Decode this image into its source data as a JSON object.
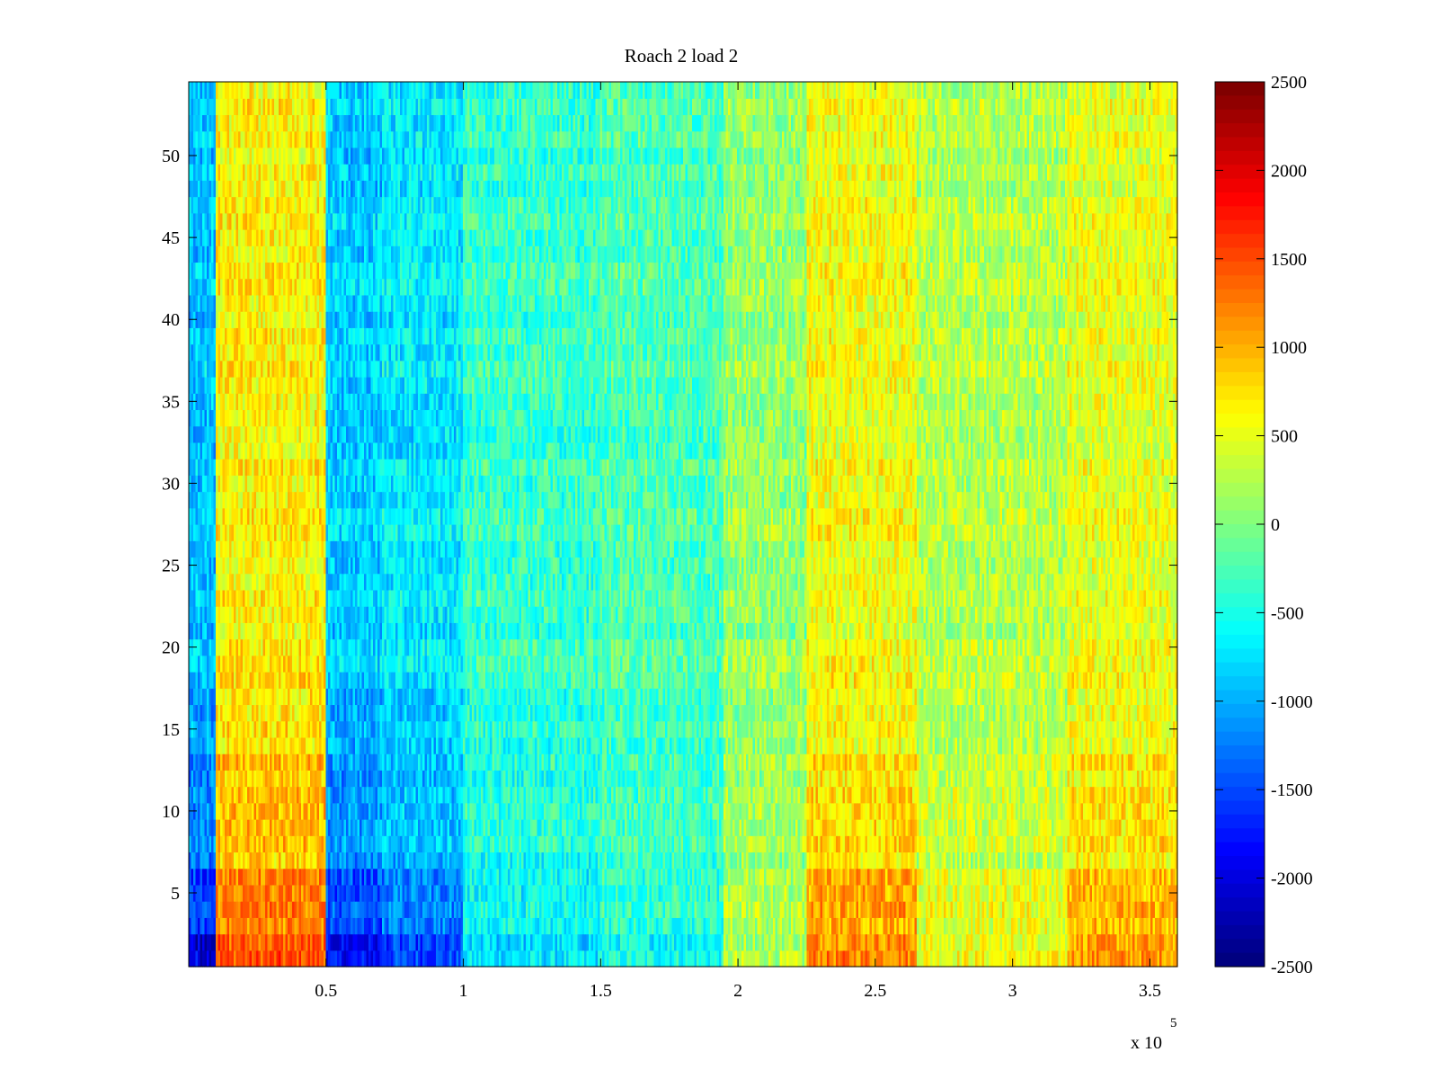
{
  "chart_data": {
    "type": "heatmap",
    "title": "Roach 2 load 2",
    "xlabel": "",
    "ylabel": "",
    "x_exponent_label": "x 10",
    "x_exponent": "5",
    "xlim": [
      0,
      360000
    ],
    "ylim": [
      0.5,
      54.5
    ],
    "x_ticks": [
      50000,
      100000,
      150000,
      200000,
      250000,
      300000,
      350000
    ],
    "x_tick_labels": [
      "0.5",
      "1",
      "1.5",
      "2",
      "2.5",
      "3",
      "3.5"
    ],
    "y_ticks": [
      5,
      10,
      15,
      20,
      25,
      30,
      35,
      40,
      45,
      50
    ],
    "y_tick_labels": [
      "5",
      "10",
      "15",
      "20",
      "25",
      "30",
      "35",
      "40",
      "45",
      "50"
    ],
    "rows": 54,
    "colormap": "jet",
    "clim": [
      -2500,
      2500
    ],
    "colorbar": {
      "ticks": [
        2500,
        2000,
        1500,
        1000,
        500,
        0,
        -500,
        -1000,
        -1500,
        -2000,
        -2500
      ],
      "tick_labels": [
        "2500",
        "2000",
        "1500",
        "1000",
        "500",
        "0",
        "-500",
        "-1000",
        "-1500",
        "-2000",
        "-2500"
      ],
      "levels": 64,
      "placement": "right"
    },
    "segments": [
      {
        "x_range": [
          0,
          10000
        ],
        "mean": -900
      },
      {
        "x_range": [
          10000,
          50000
        ],
        "mean": 650
      },
      {
        "x_range": [
          50000,
          70000
        ],
        "mean": -850
      },
      {
        "x_range": [
          70000,
          100000
        ],
        "mean": -700
      },
      {
        "x_range": [
          100000,
          150000
        ],
        "mean": -350
      },
      {
        "x_range": [
          150000,
          195000
        ],
        "mean": -250
      },
      {
        "x_range": [
          195000,
          225000
        ],
        "mean": 100
      },
      {
        "x_range": [
          225000,
          265000
        ],
        "mean": 550
      },
      {
        "x_range": [
          265000,
          320000
        ],
        "mean": 250
      },
      {
        "x_range": [
          320000,
          360000
        ],
        "mean": 500
      }
    ],
    "row_profile_note": "rows 1-13 show the strongest contrast (blue near 0.5-1.0 x10^5, red near 2.3-2.6 and 3.4-3.6 x10^5)"
  }
}
